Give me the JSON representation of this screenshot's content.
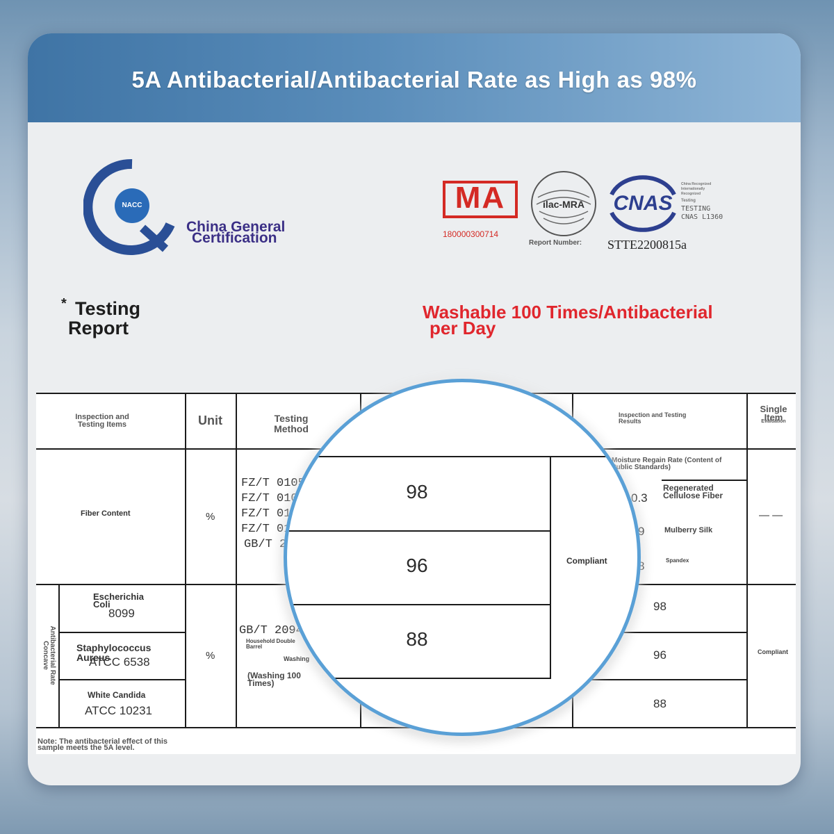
{
  "banner": {
    "title": "5A Antibacterial/Antibacterial Rate as High as 98%"
  },
  "nacc": {
    "badge": "NACC",
    "line1": "China General",
    "line2": "Certification"
  },
  "cma": {
    "text": "MA",
    "number": "180000300714"
  },
  "ilac": {
    "text": "ilac-MRA"
  },
  "cnas": {
    "text": "CNAS",
    "side_lines": [
      "China Recognized",
      "Internationally",
      "Recognized",
      "Testing",
      "TESTING",
      "CNAS L1360"
    ]
  },
  "report_number": {
    "label": "Report Number:",
    "value": "STTE2200815a"
  },
  "testing_report": {
    "star": "*",
    "line1": "Testing",
    "line2": "Report"
  },
  "washable": {
    "line1": "Washable 100 Times/Antibacterial",
    "line2": "per Day"
  },
  "table": {
    "headers": {
      "items": "Inspection and Testing Items",
      "unit": "Unit",
      "method": "Testing Method",
      "results": "Inspection and Testing Results",
      "single_item": "Single Item",
      "evaluation": "Evaluation"
    },
    "fiber": {
      "label": "Fiber Content",
      "unit": "%",
      "methods": [
        "FZ/T 0105",
        "FZ/T 010",
        "FZ/T 01",
        "FZ/T 01",
        "GB/T 2"
      ],
      "moisture_header": "Moisture Regain Rate (Content of Public Standards)",
      "rows": [
        {
          "value": "0.3",
          "name": "Regenerated Cellulose Fiber"
        },
        {
          "value": "9",
          "name": "Mulberry Silk"
        },
        {
          "value": "8",
          "name": "Spandex"
        }
      ],
      "compliant": "Compliant",
      "evaluation": "— —"
    },
    "antibacterial": {
      "group_label": "Antibacterial Rate Concave",
      "unit": "%",
      "method_lines": [
        "GB/T 2094",
        "Household Double Barrel",
        "Washing",
        "(Washing 100 Times)"
      ],
      "rows": [
        {
          "name": "Escherichia Coli",
          "code": "8099",
          "result": "98"
        },
        {
          "name": "Staphylococcus Aureus",
          "code": "ATCC 6538",
          "result": "96"
        },
        {
          "name": "White Candida",
          "code": "ATCC 10231",
          "result": "88"
        }
      ],
      "evaluation": "Compliant"
    },
    "note": "Note: The antibacterial effect of this sample meets the 5A level."
  },
  "magnifier": {
    "values": [
      "98",
      "96",
      "88"
    ]
  },
  "colors": {
    "banner": "#4a80b1",
    "nacc_blue": "#2a4f96",
    "cma_red": "#d42a24",
    "cnas_blue": "#2d3f8f",
    "red_text": "#e0262d",
    "ring": "#5aa0d6"
  }
}
